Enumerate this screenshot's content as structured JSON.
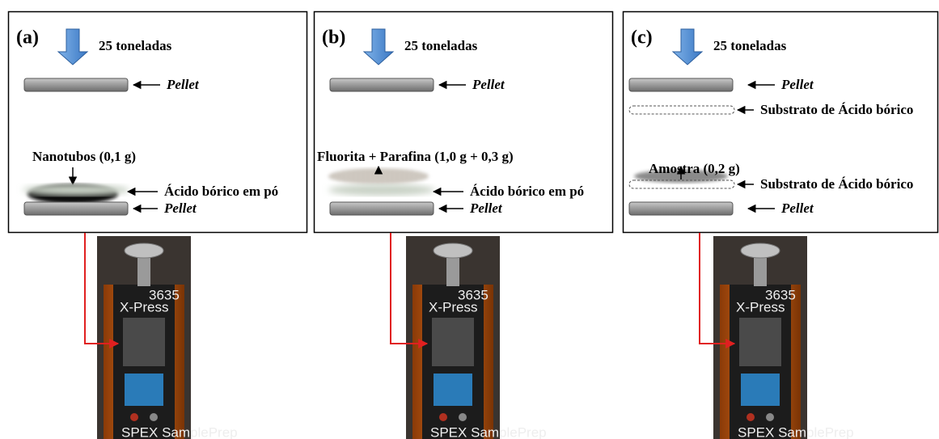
{
  "panels": [
    {
      "label": "(a)",
      "force": "25 toneladas",
      "sample": "Nanotubos (0,1 g)",
      "layers": [
        "Pellet",
        "Ácido bórico em pó",
        "Pellet"
      ]
    },
    {
      "label": "(b)",
      "force": "25 toneladas",
      "sample": "Fluorita + Parafina (1,0 g + 0,3 g)",
      "layers": [
        "Pellet",
        "Ácido bórico em pó",
        "Pellet"
      ]
    },
    {
      "label": "(c)",
      "force": "25 toneladas",
      "sample": "Amostra (0,2 g)",
      "layers": [
        "Pellet",
        "Substrato de Ácido bórico",
        "Substrato de Ácido bórico",
        "Pellet"
      ]
    }
  ],
  "press": {
    "model": "3635",
    "brand": "X-Press",
    "maker": "SPEX SamplePrep"
  }
}
